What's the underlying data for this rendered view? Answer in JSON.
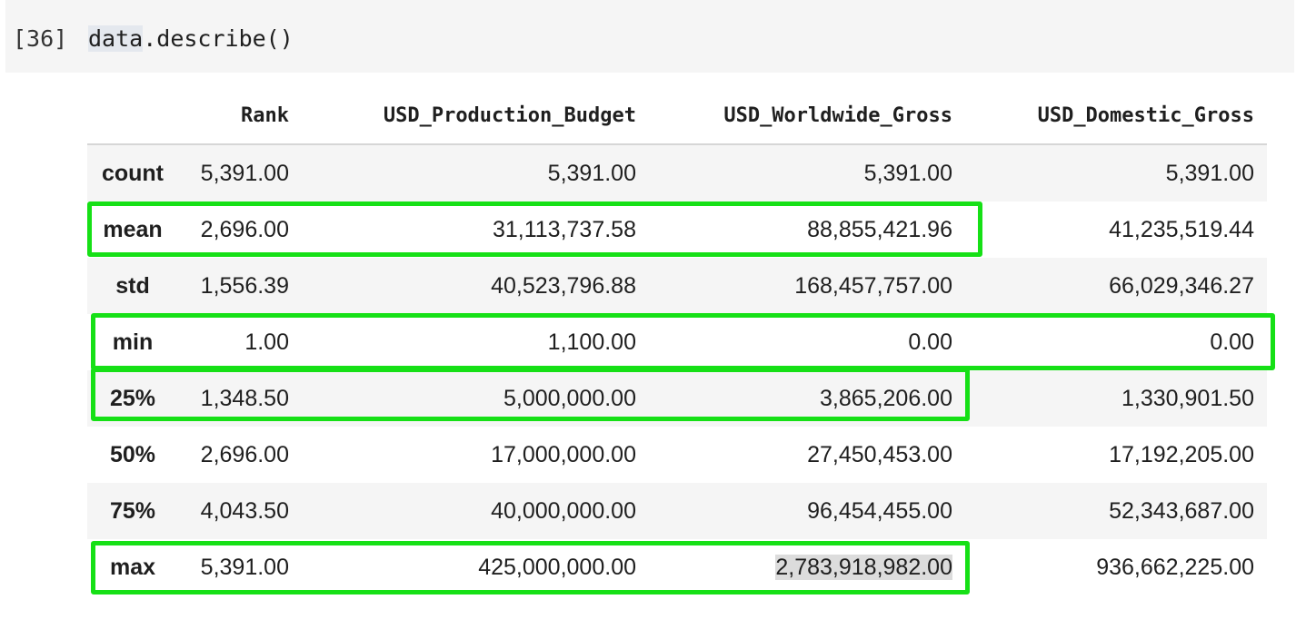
{
  "cell": {
    "execution_count": "[36]",
    "code": "data.describe()"
  },
  "table": {
    "columns": [
      "",
      "Rank",
      "USD_Production_Budget",
      "USD_Worldwide_Gross",
      "USD_Domestic_Gross"
    ],
    "rows": [
      {
        "label": "count",
        "values": [
          "5,391.00",
          "5,391.00",
          "5,391.00",
          "5,391.00"
        ]
      },
      {
        "label": "mean",
        "values": [
          "2,696.00",
          "31,113,737.58",
          "88,855,421.96",
          "41,235,519.44"
        ]
      },
      {
        "label": "std",
        "values": [
          "1,556.39",
          "40,523,796.88",
          "168,457,757.00",
          "66,029,346.27"
        ]
      },
      {
        "label": "min",
        "values": [
          "1.00",
          "1,100.00",
          "0.00",
          "0.00"
        ]
      },
      {
        "label": "25%",
        "values": [
          "1,348.50",
          "5,000,000.00",
          "3,865,206.00",
          "1,330,901.50"
        ]
      },
      {
        "label": "50%",
        "values": [
          "2,696.00",
          "17,000,000.00",
          "27,450,453.00",
          "17,192,205.00"
        ]
      },
      {
        "label": "75%",
        "values": [
          "4,043.50",
          "40,000,000.00",
          "96,454,455.00",
          "52,343,687.00"
        ]
      },
      {
        "label": "max",
        "values": [
          "5,391.00",
          "425,000,000.00",
          "2,783,918,982.00",
          "936,662,225.00"
        ]
      }
    ]
  },
  "colors": {
    "annotation_box": "#16e016",
    "selected_cell": "#dcdcdc",
    "stripe": "#f5f5f5"
  }
}
